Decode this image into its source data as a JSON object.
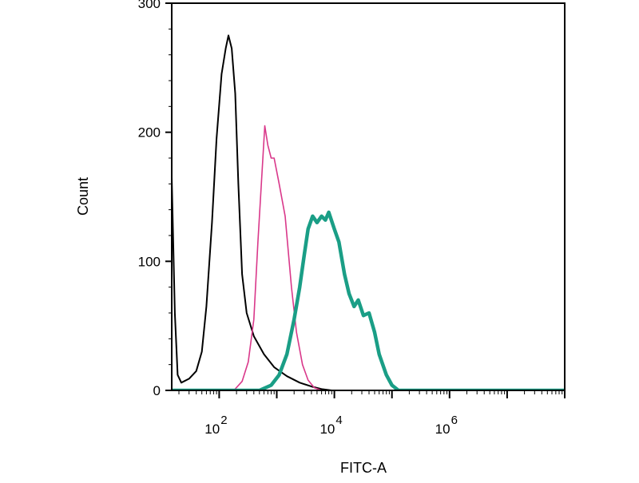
{
  "chart_data": {
    "type": "line",
    "title": "",
    "xlabel": "FITC-A",
    "ylabel": "Count",
    "x_scale": "log",
    "xlim": [
      15,
      100000000
    ],
    "ylim": [
      0,
      300
    ],
    "y_ticks": [
      {
        "value": 0,
        "label": "0"
      },
      {
        "value": 100,
        "label": "100"
      },
      {
        "value": 200,
        "label": "200"
      },
      {
        "value": 300,
        "label": "300"
      }
    ],
    "x_ticks": [
      {
        "value": 100,
        "base": "10",
        "exp": "2"
      },
      {
        "value": 10000,
        "base": "10",
        "exp": "4"
      },
      {
        "value": 1000000,
        "base": "10",
        "exp": "6"
      }
    ],
    "grid": false,
    "legend": "none",
    "series": [
      {
        "color": "#000000",
        "width": 2,
        "points": [
          [
            15,
            165
          ],
          [
            17,
            60
          ],
          [
            19,
            12
          ],
          [
            22,
            6
          ],
          [
            30,
            9
          ],
          [
            40,
            15
          ],
          [
            50,
            30
          ],
          [
            60,
            65
          ],
          [
            75,
            130
          ],
          [
            90,
            195
          ],
          [
            110,
            245
          ],
          [
            130,
            265
          ],
          [
            145,
            275
          ],
          [
            165,
            265
          ],
          [
            190,
            230
          ],
          [
            215,
            160
          ],
          [
            250,
            90
          ],
          [
            300,
            60
          ],
          [
            400,
            42
          ],
          [
            600,
            28
          ],
          [
            900,
            18
          ],
          [
            1500,
            11
          ],
          [
            2500,
            6
          ],
          [
            4000,
            3
          ],
          [
            6000,
            1
          ],
          [
            9000,
            0
          ],
          [
            100000000,
            0
          ]
        ]
      },
      {
        "color": "#d9388a",
        "width": 1.6,
        "points": [
          [
            15,
            0
          ],
          [
            180,
            0
          ],
          [
            250,
            7
          ],
          [
            320,
            22
          ],
          [
            400,
            55
          ],
          [
            470,
            115
          ],
          [
            540,
            160
          ],
          [
            620,
            205
          ],
          [
            700,
            190
          ],
          [
            800,
            180
          ],
          [
            900,
            180
          ],
          [
            1100,
            160
          ],
          [
            1400,
            135
          ],
          [
            1800,
            80
          ],
          [
            2200,
            45
          ],
          [
            2800,
            20
          ],
          [
            3500,
            8
          ],
          [
            4500,
            2
          ],
          [
            6000,
            0
          ],
          [
            100000000,
            0
          ]
        ]
      },
      {
        "color": "#1a9e86",
        "width": 4.5,
        "points": [
          [
            15,
            0
          ],
          [
            500,
            0
          ],
          [
            800,
            4
          ],
          [
            1100,
            12
          ],
          [
            1500,
            28
          ],
          [
            2000,
            55
          ],
          [
            2500,
            80
          ],
          [
            3000,
            105
          ],
          [
            3500,
            125
          ],
          [
            4200,
            135
          ],
          [
            5000,
            130
          ],
          [
            6000,
            135
          ],
          [
            7000,
            132
          ],
          [
            8000,
            138
          ],
          [
            10000,
            125
          ],
          [
            12000,
            115
          ],
          [
            15000,
            90
          ],
          [
            18000,
            75
          ],
          [
            22000,
            65
          ],
          [
            26000,
            70
          ],
          [
            32000,
            58
          ],
          [
            40000,
            60
          ],
          [
            50000,
            45
          ],
          [
            60000,
            28
          ],
          [
            80000,
            12
          ],
          [
            100000,
            4
          ],
          [
            130000,
            0
          ],
          [
            100000000,
            0
          ]
        ]
      }
    ]
  }
}
